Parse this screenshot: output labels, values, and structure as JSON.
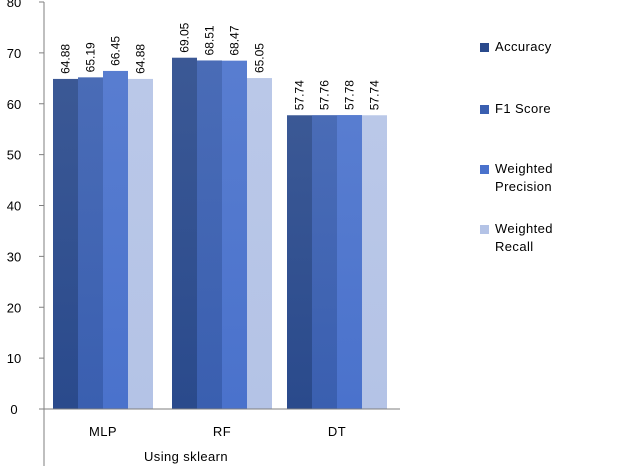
{
  "chart_data": {
    "type": "bar",
    "title": "",
    "xlabel": "Using sklearn",
    "ylabel": "",
    "ylim": [
      0,
      80
    ],
    "yticks": [
      0,
      10,
      20,
      30,
      40,
      50,
      60,
      70,
      80
    ],
    "categories": [
      "MLP",
      "RF",
      "DT"
    ],
    "grid": false,
    "legend_position": "right",
    "series": [
      {
        "name": "Accuracy",
        "values": [
          64.88,
          69.05,
          57.74
        ],
        "labels": [
          "64.88",
          "69.05",
          "57.74"
        ],
        "color": "#2a4a8c"
      },
      {
        "name": "F1 Score",
        "values": [
          65.19,
          68.51,
          57.76
        ],
        "labels": [
          "65.19",
          "68.51",
          "57.76"
        ],
        "color": "#3a5fb0"
      },
      {
        "name": "Weighted\nPrecision",
        "values": [
          66.45,
          68.47,
          57.78
        ],
        "labels": [
          "66.45",
          "68.47",
          "57.78"
        ],
        "color": "#4a72cc"
      },
      {
        "name": "Weighted\nRecall",
        "values": [
          64.88,
          65.05,
          57.74
        ],
        "labels": [
          "64.88",
          "65.05",
          "57.74"
        ],
        "color": "#b4c3e6"
      }
    ]
  }
}
